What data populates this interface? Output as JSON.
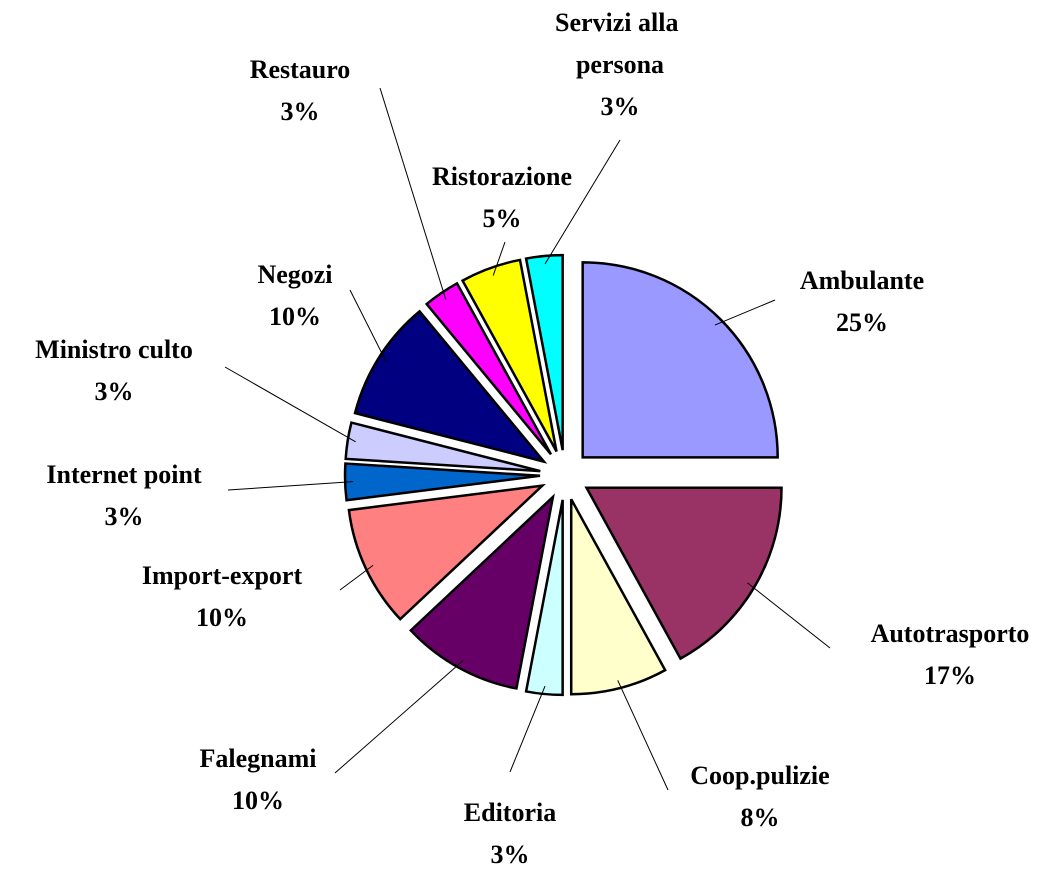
{
  "chart_data": {
    "type": "pie",
    "categories": [
      "Ambulante",
      "Autotrasporto",
      "Coop.pulizie",
      "Editoria",
      "Falegnami",
      "Import-export",
      "Internet point",
      "Ministro culto",
      "Negozi",
      "Restauro",
      "Ristorazione",
      "Servizi alla persona"
    ],
    "values": [
      25,
      17,
      8,
      3,
      10,
      10,
      3,
      3,
      10,
      3,
      5,
      3
    ],
    "value_labels": [
      "25%",
      "17%",
      "8%",
      "3%",
      "10%",
      "10%",
      "3%",
      "3%",
      "10%",
      "3%",
      "5%",
      "3%"
    ],
    "colors": [
      "#9999ff",
      "#993366",
      "#ffffcc",
      "#ccffff",
      "#660066",
      "#ff8080",
      "#0066cc",
      "#ccccff",
      "#000080",
      "#ff00ff",
      "#ffff00",
      "#00ffff"
    ]
  }
}
